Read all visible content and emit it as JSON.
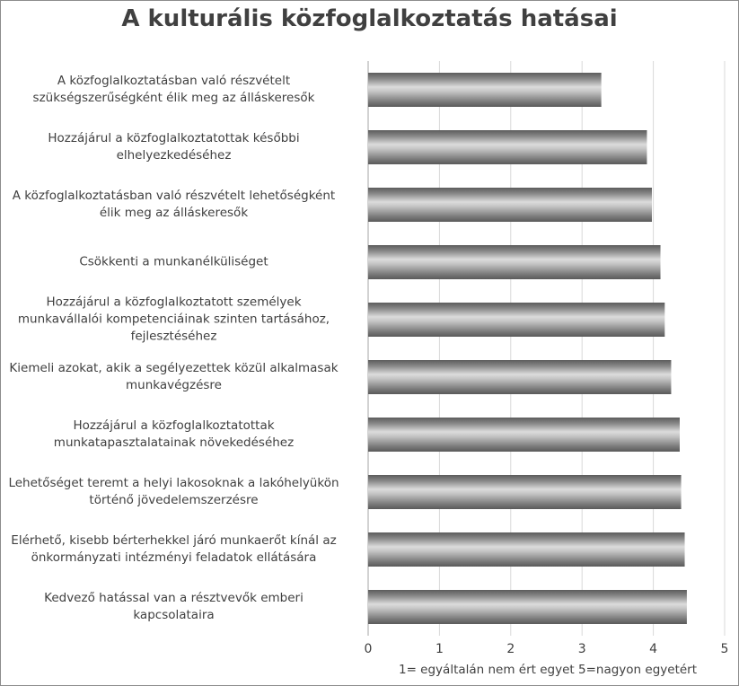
{
  "chart_data": {
    "type": "bar",
    "orientation": "horizontal",
    "title": "A kulturális közfoglalkoztatás hatásai",
    "xlabel": "1= egyáltalán nem ért egyet 5=nagyon egyetért",
    "ylabel": "",
    "xlim": [
      0,
      5
    ],
    "ticks": [
      "0",
      "1",
      "2",
      "3",
      "4",
      "5"
    ],
    "grid": true,
    "bar_style": "gray gradient",
    "categories": [
      [
        "A közfoglalkoztatásban való részvételt",
        "szükségszerűségként élik meg az álláskeresők"
      ],
      [
        "Hozzájárul a közfoglalkoztatottak későbbi",
        "elhelyezkedéséhez"
      ],
      [
        "A közfoglalkoztatásban való részvételt lehetőségként",
        "élik meg az álláskeresők"
      ],
      [
        "Csökkenti a munkanélküliséget"
      ],
      [
        "Hozzájárul a közfoglalkoztatott személyek",
        "munkavállalói kompetenciáinak szinten tartásához,",
        "fejlesztéséhez"
      ],
      [
        "Kiemeli azokat, akik a segélyezettek közül alkalmasak",
        "munkavégzésre"
      ],
      [
        "Hozzájárul a közfoglalkoztatottak",
        "munkatapasztalatainak növekedéséhez"
      ],
      [
        "Lehetőséget teremt a helyi lakosoknak a lakóhelyükön",
        "történő jövedelemszerzésre"
      ],
      [
        "Elérhető, kisebb bérterhekkel járó munkaerőt kínál az",
        "önkormányzati intézményi feladatok ellátására"
      ],
      [
        "Kedvező hatással van a résztvevők emberi",
        "kapcsolataira"
      ]
    ],
    "values": [
      3.27,
      3.91,
      3.98,
      4.1,
      4.16,
      4.25,
      4.37,
      4.39,
      4.44,
      4.47
    ]
  }
}
